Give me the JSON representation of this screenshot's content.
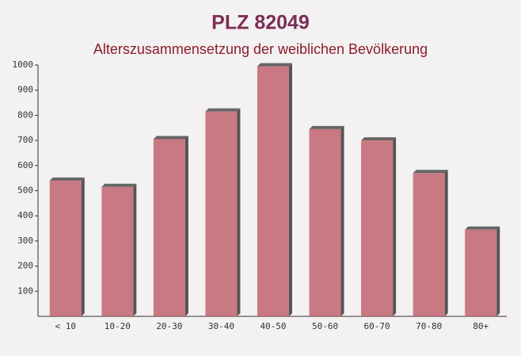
{
  "chart_data": {
    "type": "bar",
    "title": "PLZ 82049",
    "subtitle": "Alterszusammensetzung der weiblichen Bevölkerung",
    "categories": [
      "< 10",
      "10-20",
      "20-30",
      "30-40",
      "40-50",
      "50-60",
      "60-70",
      "70-80",
      "80+"
    ],
    "values": [
      540,
      515,
      705,
      815,
      995,
      745,
      700,
      570,
      345
    ],
    "color": "#c0646e",
    "ylim": [
      0,
      1000
    ],
    "yticks": [
      100,
      200,
      300,
      400,
      500,
      600,
      700,
      800,
      900,
      1000
    ]
  }
}
